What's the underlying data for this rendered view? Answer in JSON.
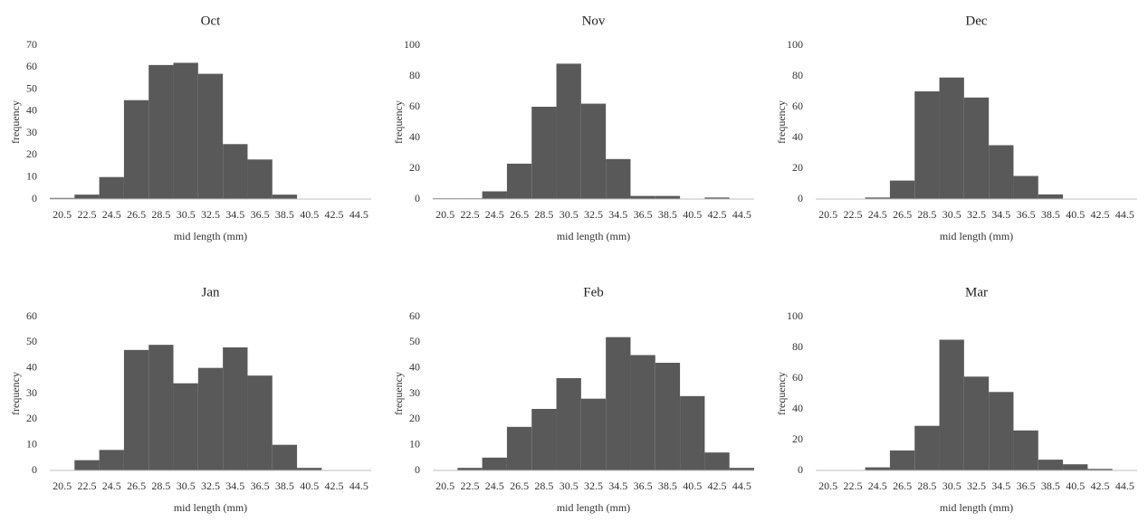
{
  "chart_data": [
    {
      "type": "bar",
      "title": "Oct",
      "xlabel": "mid length (mm)",
      "ylabel": "frequency",
      "color": "#595959",
      "categories": [
        "20.5",
        "22.5",
        "24.5",
        "26.5",
        "28.5",
        "30.5",
        "32.5",
        "34.5",
        "36.5",
        "38.5",
        "40.5",
        "42.5",
        "44.5"
      ],
      "values": [
        0.5,
        2,
        10,
        45,
        61,
        62,
        57,
        25,
        18,
        2,
        0,
        0,
        0
      ],
      "ylim": [
        0,
        70
      ],
      "yticks": [
        0,
        10,
        20,
        30,
        40,
        50,
        60,
        70
      ]
    },
    {
      "type": "bar",
      "title": "Nov",
      "xlabel": "mid length (mm)",
      "ylabel": "frequency",
      "color": "#595959",
      "categories": [
        "20.5",
        "22.5",
        "24.5",
        "26.5",
        "28.5",
        "30.5",
        "32.5",
        "34.5",
        "36.5",
        "38.5",
        "40.5",
        "42.5",
        "44.5"
      ],
      "values": [
        0.5,
        0.5,
        5,
        23,
        60,
        88,
        62,
        26,
        2,
        2,
        0,
        1,
        0
      ],
      "ylim": [
        0,
        100
      ],
      "yticks": [
        0,
        20,
        40,
        60,
        80,
        100
      ]
    },
    {
      "type": "bar",
      "title": "Dec",
      "xlabel": "mid length (mm)",
      "ylabel": "frequency",
      "color": "#595959",
      "categories": [
        "20.5",
        "22.5",
        "24.5",
        "26.5",
        "28.5",
        "30.5",
        "32.5",
        "34.5",
        "36.5",
        "38.5",
        "40.5",
        "42.5",
        "44.5"
      ],
      "values": [
        0,
        0,
        1,
        12,
        70,
        79,
        66,
        35,
        15,
        3,
        0,
        0,
        0
      ],
      "ylim": [
        0,
        100
      ],
      "yticks": [
        0,
        20,
        40,
        60,
        80,
        100
      ]
    },
    {
      "type": "bar",
      "title": "Jan",
      "xlabel": "mid length (mm)",
      "ylabel": "frequency",
      "color": "#595959",
      "categories": [
        "20.5",
        "22.5",
        "24.5",
        "26.5",
        "28.5",
        "30.5",
        "32.5",
        "34.5",
        "36.5",
        "38.5",
        "40.5",
        "42.5",
        "44.5"
      ],
      "values": [
        0,
        4,
        8,
        47,
        49,
        34,
        40,
        48,
        37,
        10,
        1,
        0,
        0
      ],
      "ylim": [
        0,
        60
      ],
      "yticks": [
        0,
        10,
        20,
        30,
        40,
        50,
        60
      ]
    },
    {
      "type": "bar",
      "title": "Feb",
      "xlabel": "mid length (mm)",
      "ylabel": "frequency",
      "color": "#595959",
      "categories": [
        "20.5",
        "22.5",
        "24.5",
        "26.5",
        "28.5",
        "30.5",
        "32.5",
        "34.5",
        "36.5",
        "38.5",
        "40.5",
        "42.5",
        "44.5"
      ],
      "values": [
        0,
        1,
        5,
        17,
        24,
        36,
        28,
        52,
        45,
        42,
        29,
        7,
        1
      ],
      "ylim": [
        0,
        60
      ],
      "yticks": [
        0,
        10,
        20,
        30,
        40,
        50,
        60
      ]
    },
    {
      "type": "bar",
      "title": "Mar",
      "xlabel": "mid length (mm)",
      "ylabel": "frequency",
      "color": "#595959",
      "categories": [
        "20.5",
        "22.5",
        "24.5",
        "26.5",
        "28.5",
        "30.5",
        "32.5",
        "34.5",
        "36.5",
        "38.5",
        "40.5",
        "42.5",
        "44.5"
      ],
      "values": [
        0,
        0,
        2,
        13,
        29,
        85,
        61,
        51,
        26,
        7,
        4,
        1,
        0
      ],
      "ylim": [
        0,
        100
      ],
      "yticks": [
        0,
        20,
        40,
        60,
        80,
        100
      ]
    }
  ]
}
